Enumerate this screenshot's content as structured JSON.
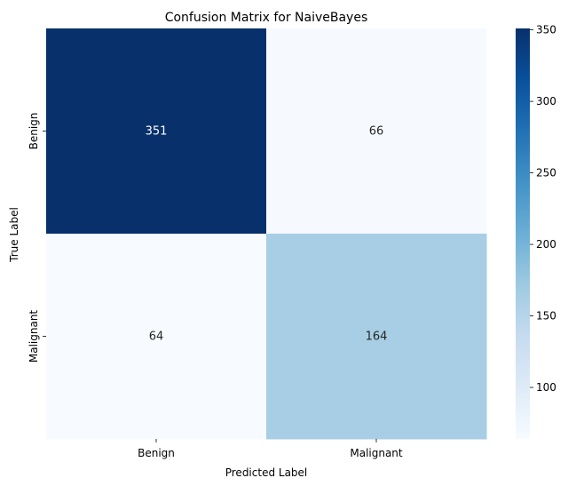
{
  "chart_data": {
    "type": "heatmap",
    "title": "Confusion Matrix for NaiveBayes",
    "xlabel": "Predicted Label",
    "ylabel": "True Label",
    "x_categories": [
      "Benign",
      "Malignant"
    ],
    "y_categories": [
      "Benign",
      "Malignant"
    ],
    "values": [
      [
        351,
        66
      ],
      [
        64,
        164
      ]
    ],
    "colormap": "Blues",
    "color_range": [
      64,
      351
    ],
    "colorbar_ticks": [
      100,
      150,
      200,
      250,
      300,
      350
    ],
    "colorbar_tick_labels": [
      "100",
      "150",
      "200",
      "250",
      "300",
      "350"
    ],
    "annotation_color_light": "#ffffff",
    "annotation_color_dark": "#262626",
    "grid": false
  }
}
